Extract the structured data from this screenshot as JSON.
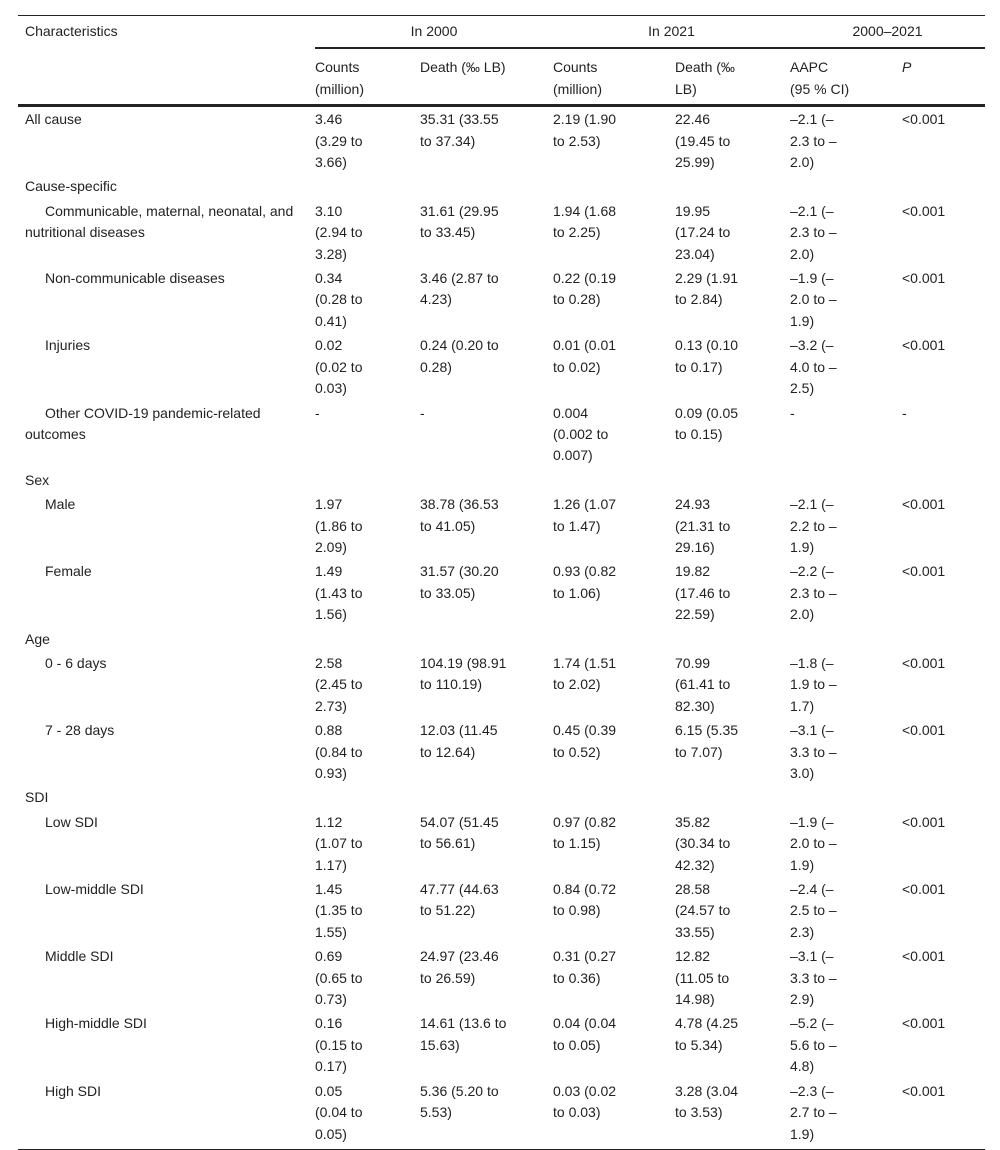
{
  "header": {
    "characteristics": "Characteristics",
    "group_2000": "In 2000",
    "group_2021": "In 2021",
    "group_change": "2000–2021",
    "sub": [
      "Counts (million)",
      "Death (‰ LB)",
      "Counts (million)",
      "Death (‰ LB)",
      "AAPC (95 % CI)",
      "P"
    ]
  },
  "rows": [
    {
      "label": "All cause",
      "indent": false,
      "cells": [
        "3.46 (3.29 to 3.66)",
        "35.31 (33.55 to 37.34)",
        "2.19 (1.90 to 2.53)",
        "22.46 (19.45 to 25.99)",
        "–2.1 (–2.3 to –2.0)",
        "<0.001"
      ]
    },
    {
      "label": "Cause-specific",
      "section": true
    },
    {
      "label": "Communicable, maternal, neonatal, and nutritional diseases",
      "indent": true,
      "cells": [
        "3.10 (2.94 to 3.28)",
        "31.61 (29.95 to 33.45)",
        "1.94 (1.68 to 2.25)",
        "19.95 (17.24 to 23.04)",
        "–2.1 (–2.3 to –2.0)",
        "<0.001"
      ]
    },
    {
      "label": "Non-communicable diseases",
      "indent": true,
      "cells": [
        "0.34 (0.28 to 0.41)",
        "3.46 (2.87 to 4.23)",
        "0.22 (0.19 to 0.28)",
        "2.29 (1.91 to 2.84)",
        "–1.9 (–2.0 to –1.9)",
        "<0.001"
      ]
    },
    {
      "label": "Injuries",
      "indent": true,
      "cells": [
        "0.02 (0.02 to 0.03)",
        "0.24 (0.20 to 0.28)",
        "0.01 (0.01 to 0.02)",
        "0.13 (0.10 to 0.17)",
        "–3.2 (–4.0 to –2.5)",
        "<0.001"
      ]
    },
    {
      "label": "Other COVID-19 pandemic-related outcomes",
      "indent": true,
      "cells": [
        "-",
        "-",
        "0.004 (0.002 to 0.007)",
        "0.09 (0.05 to 0.15)",
        "-",
        "-"
      ]
    },
    {
      "label": "Sex",
      "section": true
    },
    {
      "label": "Male",
      "indent": true,
      "cells": [
        "1.97 (1.86 to 2.09)",
        "38.78 (36.53 to 41.05)",
        "1.26 (1.07 to 1.47)",
        "24.93 (21.31 to 29.16)",
        "–2.1 (–2.2 to –1.9)",
        "<0.001"
      ]
    },
    {
      "label": "Female",
      "indent": true,
      "cells": [
        "1.49 (1.43 to 1.56)",
        "31.57 (30.20 to 33.05)",
        "0.93 (0.82 to 1.06)",
        "19.82 (17.46 to 22.59)",
        "–2.2 (–2.3 to –2.0)",
        "<0.001"
      ]
    },
    {
      "label": "Age",
      "section": true
    },
    {
      "label": "0 - 6 days",
      "indent": true,
      "cells": [
        "2.58 (2.45 to 2.73)",
        "104.19 (98.91 to 110.19)",
        "1.74 (1.51 to 2.02)",
        "70.99 (61.41 to 82.30)",
        "–1.8 (–1.9 to –1.7)",
        "<0.001"
      ]
    },
    {
      "label": "7 - 28 days",
      "indent": true,
      "cells": [
        "0.88 (0.84 to 0.93)",
        "12.03 (11.45 to 12.64)",
        "0.45 (0.39 to 0.52)",
        "6.15 (5.35 to 7.07)",
        "–3.1 (–3.3 to –3.0)",
        "<0.001"
      ]
    },
    {
      "label": "SDI",
      "section": true
    },
    {
      "label": "Low SDI",
      "indent": true,
      "cells": [
        "1.12 (1.07 to 1.17)",
        "54.07 (51.45 to 56.61)",
        "0.97 (0.82 to 1.15)",
        "35.82 (30.34 to 42.32)",
        "–1.9 (–2.0 to –1.9)",
        "<0.001"
      ]
    },
    {
      "label": "Low-middle SDI",
      "indent": true,
      "cells": [
        "1.45 (1.35 to 1.55)",
        "47.77 (44.63 to 51.22)",
        "0.84 (0.72 to 0.98)",
        "28.58 (24.57 to 33.55)",
        "–2.4 (–2.5 to –2.3)",
        "<0.001"
      ]
    },
    {
      "label": "Middle SDI",
      "indent": true,
      "cells": [
        "0.69 (0.65 to 0.73)",
        "24.97 (23.46 to 26.59)",
        "0.31 (0.27 to 0.36)",
        "12.82 (11.05 to 14.98)",
        "–3.1 (–3.3 to –2.9)",
        "<0.001"
      ]
    },
    {
      "label": "High-middle SDI",
      "indent": true,
      "cells": [
        "0.16 (0.15 to 0.17)",
        "14.61 (13.6 to 15.63)",
        "0.04 (0.04 to 0.05)",
        "4.78 (4.25 to 5.34)",
        "–5.2 (–5.6 to –4.8)",
        "<0.001"
      ]
    },
    {
      "label": "High SDI",
      "indent": true,
      "cells": [
        "0.05 (0.04 to 0.05)",
        "5.36 (5.20 to 5.53)",
        "0.03 (0.02 to 0.03)",
        "3.28 (3.04 to 3.53)",
        "–2.3 (–2.7 to –1.9)",
        "<0.001"
      ]
    }
  ]
}
